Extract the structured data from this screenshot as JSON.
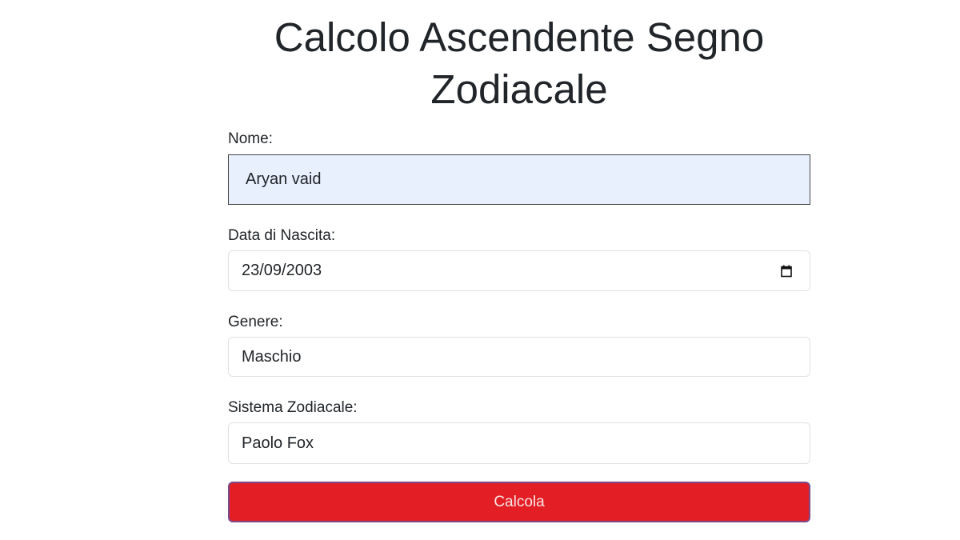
{
  "title": "Calcolo Ascendente Segno Zodiacale",
  "form": {
    "name_label": "Nome:",
    "name_value": "Aryan vaid",
    "dob_label": "Data di Nascita:",
    "dob_value": "23/09/2003",
    "gender_label": "Genere:",
    "gender_value": "Maschio",
    "system_label": "Sistema Zodiacale:",
    "system_value": "Paolo Fox",
    "submit_label": "Calcola"
  },
  "colors": {
    "submit_bg": "#e31e24",
    "autofill_bg": "#e8f0fe"
  },
  "icons": {
    "date_picker": "calendar-icon"
  }
}
